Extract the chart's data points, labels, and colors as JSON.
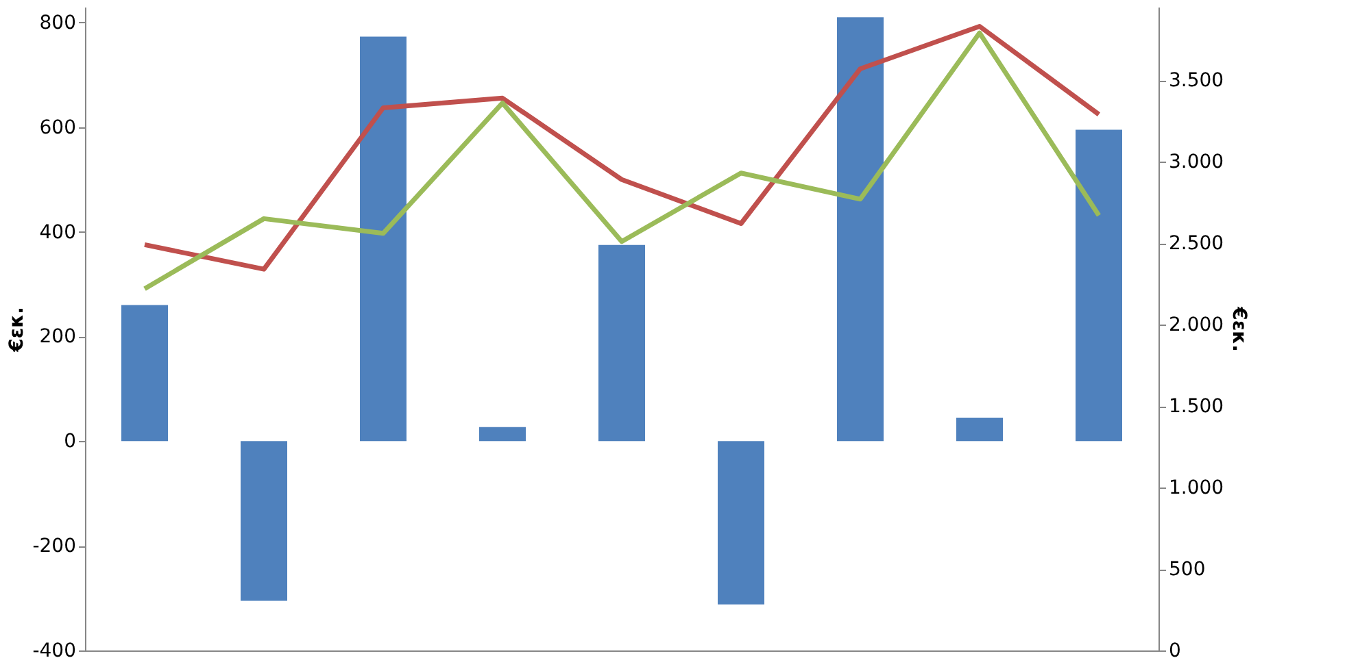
{
  "chart_data": {
    "type": "bar",
    "ylabel": "€εκ.",
    "y2label": "€εκ.",
    "categories": [
      null,
      null,
      null,
      null,
      null,
      null,
      null,
      null,
      null
    ],
    "series": [
      {
        "color": "#4f81bd",
        "values": [
          260,
          -305,
          773,
          27,
          375,
          -312,
          810,
          45,
          595
        ]
      },
      {
        "type": "line",
        "axis": "y2",
        "color": "#c0504d",
        "values": [
          2490,
          2340,
          3330,
          3390,
          2890,
          2620,
          3570,
          3830,
          3290
        ]
      },
      {
        "type": "line",
        "axis": "y2",
        "color": "#9bbb59",
        "values": [
          2220,
          2650,
          2560,
          3360,
          2510,
          2930,
          2770,
          3790,
          2670
        ]
      }
    ],
    "ylim": [
      -400,
      830
    ],
    "yticks": [
      -400,
      -200,
      0,
      200,
      400,
      600,
      800
    ],
    "y2lim": [
      0,
      3950
    ],
    "y2ticks": [
      0,
      500,
      {
        "value": 1000,
        "label": "1.000"
      },
      {
        "value": 1500,
        "label": "1.500"
      },
      {
        "value": 2000,
        "label": "2.000"
      },
      {
        "value": 2500,
        "label": "2.500"
      },
      {
        "value": 3000,
        "label": "3.000"
      },
      {
        "value": 3500,
        "label": "3.500"
      }
    ],
    "grid": false,
    "marker": "none",
    "line_style": "solid",
    "tick_labels": "y"
  }
}
